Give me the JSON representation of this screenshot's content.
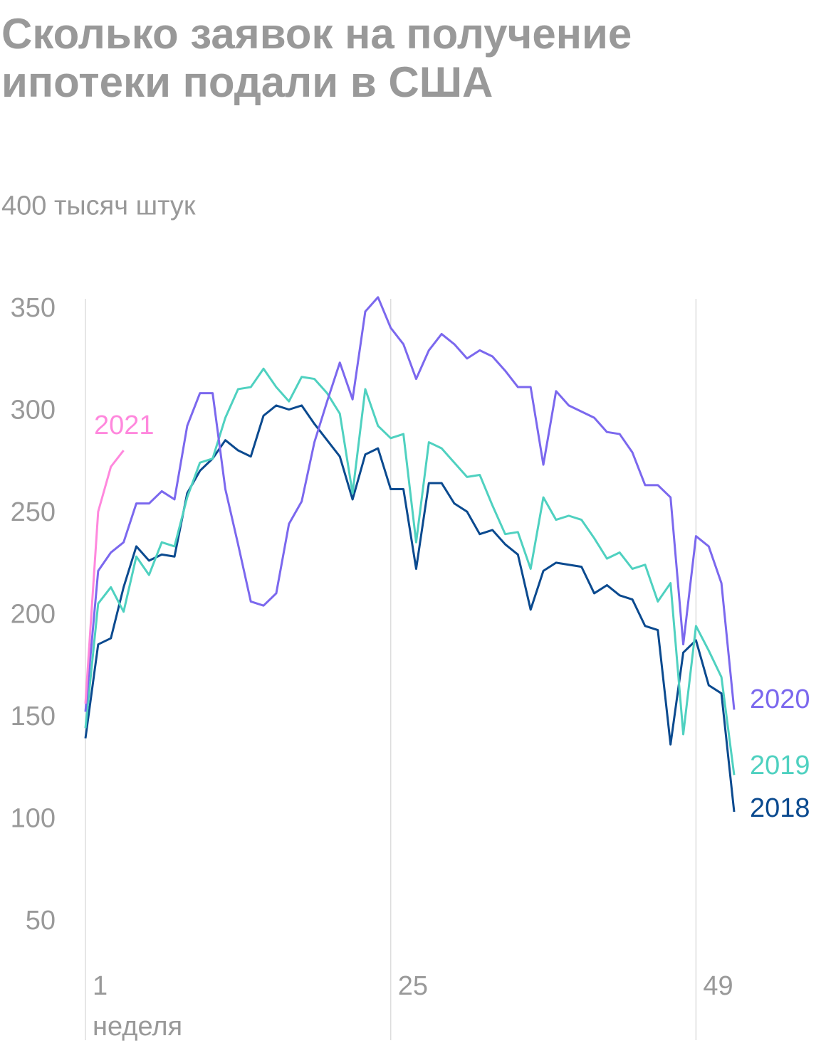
{
  "chart_data": {
    "type": "line",
    "title": "Сколько заявок на получение ипотеки подали в США",
    "xlabel": "неделя",
    "x": [
      1,
      2,
      3,
      4,
      5,
      6,
      7,
      8,
      9,
      10,
      11,
      12,
      13,
      14,
      15,
      16,
      17,
      18,
      19,
      20,
      21,
      22,
      23,
      24,
      25,
      26,
      27,
      28,
      29,
      30,
      31,
      32,
      33,
      34,
      35,
      36,
      37,
      38,
      39,
      40,
      41,
      42,
      43,
      44,
      45,
      46,
      47,
      48,
      49,
      50,
      51,
      52
    ],
    "xlim": [
      1,
      52
    ],
    "xticks": [
      1,
      25,
      49
    ],
    "ylim": [
      0,
      400
    ],
    "yticks": [
      50,
      100,
      150,
      200,
      250,
      300,
      350,
      {
        "value": 400,
        "label": "400 тысяч штук"
      }
    ],
    "series": [
      {
        "name": "2018",
        "color": "#0b4a8f",
        "values": [
          140,
          186,
          189,
          214,
          234,
          227,
          230,
          229,
          260,
          271,
          277,
          286,
          281,
          278,
          298,
          303,
          301,
          303,
          294,
          286,
          278,
          257,
          279,
          282,
          262,
          262,
          223,
          265,
          265,
          255,
          251,
          240,
          242,
          235,
          230,
          203,
          222,
          226,
          225,
          224,
          211,
          215,
          210,
          208,
          195,
          193,
          137,
          182,
          188,
          166,
          162,
          104
        ]
      },
      {
        "name": "2019",
        "color": "#4fd1c0",
        "values": [
          145,
          206,
          214,
          202,
          229,
          220,
          236,
          234,
          258,
          275,
          277,
          297,
          311,
          312,
          321,
          312,
          305,
          317,
          316,
          309,
          299,
          260,
          311,
          293,
          287,
          289,
          236,
          285,
          282,
          275,
          268,
          269,
          254,
          240,
          241,
          223,
          258,
          247,
          249,
          247,
          238,
          228,
          231,
          223,
          225,
          207,
          216,
          142,
          195,
          183,
          170,
          122
        ]
      },
      {
        "name": "2020",
        "color": "#7b68ee",
        "values": [
          153,
          222,
          231,
          236,
          255,
          255,
          261,
          257,
          293,
          309,
          309,
          262,
          235,
          207,
          205,
          211,
          245,
          256,
          285,
          305,
          324,
          306,
          349,
          356,
          341,
          333,
          316,
          330,
          338,
          333,
          326,
          330,
          327,
          320,
          312,
          312,
          274,
          310,
          303,
          300,
          297,
          290,
          289,
          280,
          264,
          264,
          258,
          186,
          239,
          234,
          216,
          154
        ]
      },
      {
        "name": "2021",
        "color": "#ff88dd",
        "values": [
          157,
          251,
          273,
          281,
          null,
          null,
          null,
          null,
          null,
          null,
          null,
          null,
          null,
          null,
          null,
          null,
          null,
          null,
          null,
          null,
          null,
          null,
          null,
          null,
          null,
          null,
          null,
          null,
          null,
          null,
          null,
          null,
          null,
          null,
          null,
          null,
          null,
          null,
          null,
          null,
          null,
          null,
          null,
          null,
          null,
          null,
          null,
          null,
          null,
          null,
          null,
          null
        ]
      }
    ]
  }
}
